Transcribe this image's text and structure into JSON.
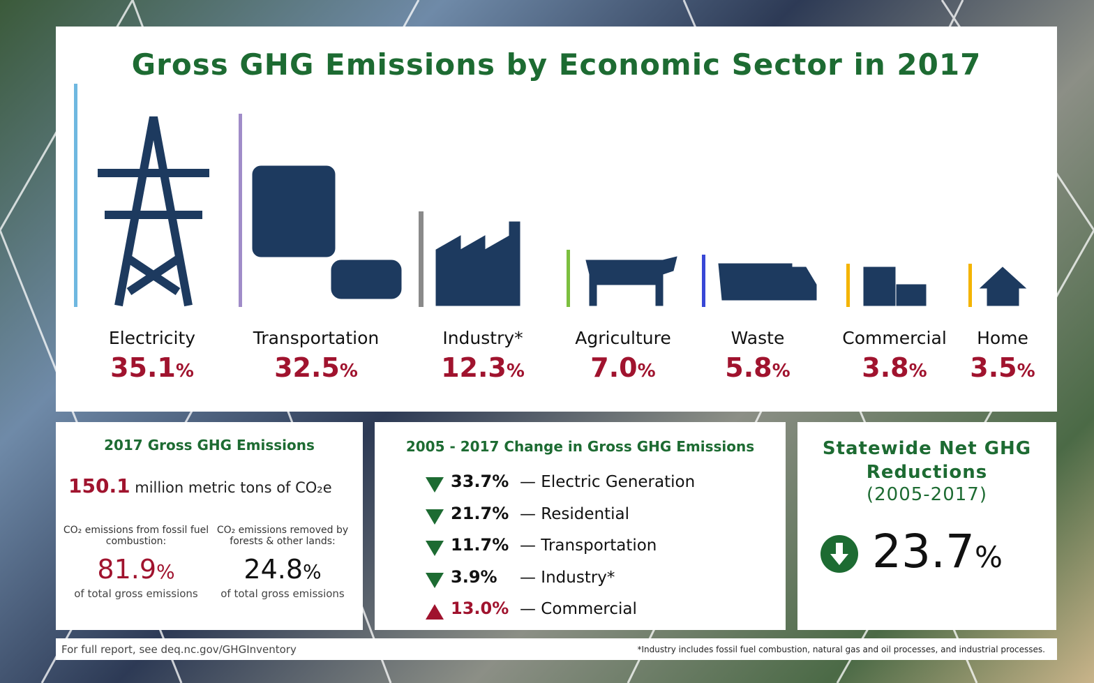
{
  "title": "Gross GHG Emissions by Economic Sector in 2017",
  "sectors": [
    {
      "name": "Electricity",
      "value": "35.1",
      "unit": "%"
    },
    {
      "name": "Transportation",
      "value": "32.5",
      "unit": "%"
    },
    {
      "name": "Industry*",
      "value": "12.3",
      "unit": "%"
    },
    {
      "name": "Agriculture",
      "value": "7.0",
      "unit": "%"
    },
    {
      "name": "Waste",
      "value": "5.8",
      "unit": "%"
    },
    {
      "name": "Commercial",
      "value": "3.8",
      "unit": "%"
    },
    {
      "name": "Home",
      "value": "3.5",
      "unit": "%"
    }
  ],
  "gross": {
    "title": "2017 Gross GHG Emissions",
    "amount": "150.1",
    "amount_text": "million metric tons of CO₂e",
    "items": [
      {
        "label": "CO₂ emissions from fossil fuel combustion:",
        "value": "81.9",
        "unit": "%",
        "note": "of total gross emissions"
      },
      {
        "label": "CO₂ emissions removed by forests & other lands:",
        "value": "24.8",
        "unit": "%",
        "note": "of total gross emissions"
      }
    ]
  },
  "change": {
    "title": "2005 - 2017 Change in Gross GHG Emissions",
    "rows": [
      {
        "direction": "down",
        "value": "33.7%",
        "label": "— Electric Generation"
      },
      {
        "direction": "down",
        "value": "21.7%",
        "label": "— Residential"
      },
      {
        "direction": "down",
        "value": "11.7%",
        "label": "— Transportation"
      },
      {
        "direction": "down",
        "value": "3.9%",
        "label": "— Industry*"
      },
      {
        "direction": "up",
        "value": "13.0%",
        "label": "— Commercial"
      }
    ]
  },
  "net": {
    "title": "Statewide Net GHG Reductions",
    "period": "(2005-2017)",
    "value": "23.7",
    "unit": "%"
  },
  "footer": {
    "left": "For full report, see deq.nc.gov/GHGInventory",
    "right": "*Industry includes fossil fuel combustion, natural gas and oil processes, and industrial processes."
  }
}
